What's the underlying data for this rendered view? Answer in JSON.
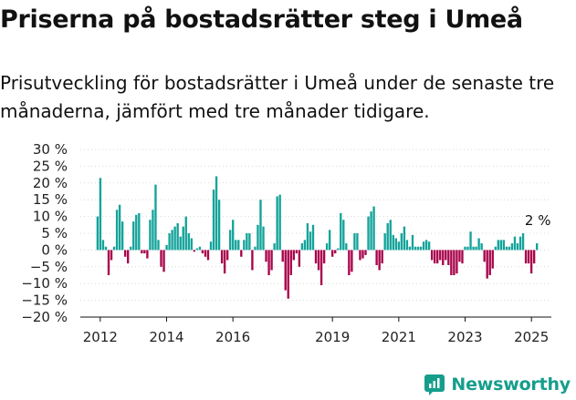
{
  "header": {
    "title": "Priserna på bostadsrätter steg i Umeå",
    "subtitle": "Prisutveckling för bostadsrätter i Umeå under de senaste tre månaderna, jämfört med tre månader tidigare."
  },
  "brand": {
    "name": "Newsworthy"
  },
  "colors": {
    "positive": "#14a39a",
    "negative": "#a8054b",
    "axis": "#111111",
    "brand": "#159e8c"
  },
  "chart_data": {
    "type": "bar",
    "title": "",
    "xlabel": "",
    "ylabel": "",
    "y_tick_labels": [
      "30 %",
      "25 %",
      "20 %",
      "15 %",
      "10 %",
      "5 %",
      "0 %",
      "−5 %",
      "−10 %",
      "−15 %",
      "−20 %"
    ],
    "y_ticks": [
      30,
      25,
      20,
      15,
      10,
      5,
      0,
      -5,
      -10,
      -15,
      -20
    ],
    "ylim": [
      -20,
      30
    ],
    "x_tick_labels": [
      "2012",
      "2014",
      "2016",
      "2019",
      "2021",
      "2023",
      "2025"
    ],
    "x_ticks": [
      2012,
      2014,
      2016,
      2019,
      2021,
      2023,
      2025
    ],
    "xlim": [
      2011.4,
      2025.6
    ],
    "start": 2011.92,
    "step": 0.0833,
    "annotation": {
      "label": "2 %",
      "index": 159
    },
    "values": [
      10,
      21.5,
      3,
      1,
      -7.5,
      -3,
      1,
      12,
      13.5,
      8.5,
      -2,
      -4,
      1,
      8.5,
      10.5,
      11,
      -1,
      -1,
      -2.5,
      9,
      12,
      19.5,
      3,
      -5,
      -6.5,
      1.5,
      5,
      6,
      7,
      8,
      4,
      7,
      10,
      5,
      3.5,
      -0.5,
      0.5,
      1,
      -1,
      -2,
      -3,
      2.5,
      18,
      22,
      15,
      -4,
      -7,
      -3,
      6,
      9,
      3,
      3,
      -2,
      3,
      5,
      5,
      -6,
      1,
      7.5,
      15,
      7,
      -3.5,
      -7.5,
      -6,
      2,
      16,
      16.5,
      -3.5,
      -12,
      -14.5,
      -7.5,
      -3,
      -1,
      -5,
      2,
      3,
      8,
      5.5,
      7.5,
      -4,
      -6,
      -10.5,
      -4,
      2,
      6,
      -2,
      -1,
      0.5,
      11,
      9,
      2,
      -7.5,
      -6.5,
      5,
      5,
      -3,
      -2.5,
      -1.5,
      10,
      11.5,
      13,
      -4.5,
      -6,
      -4,
      5,
      8,
      9,
      4.5,
      3.5,
      2.5,
      5,
      7,
      3,
      1,
      4.5,
      1,
      1,
      1,
      2.5,
      3,
      2.5,
      -3,
      -4,
      -4,
      -3,
      -4.5,
      -3,
      -4.5,
      -7.5,
      -7.5,
      -7,
      -3.5,
      -4,
      1,
      1,
      5.5,
      1,
      1,
      3.5,
      2,
      -3.5,
      -8.5,
      -7.5,
      -5.5,
      1,
      3,
      3,
      3,
      1,
      1,
      2,
      4,
      2,
      4,
      5,
      -4,
      -4,
      -7,
      -4,
      2
    ],
    "legend": []
  }
}
